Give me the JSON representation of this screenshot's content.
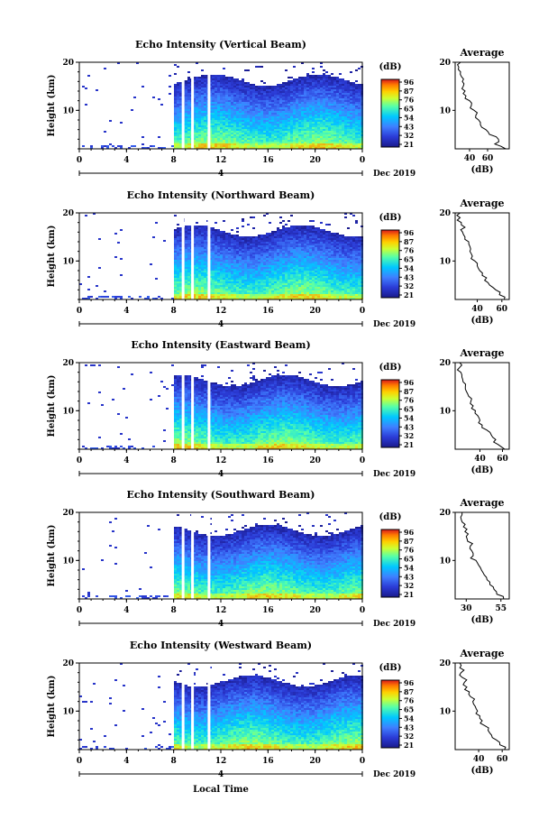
{
  "figure": {
    "xlabel": "Local Time",
    "date_label": "Dec 2019",
    "day_marker": "4",
    "colorbar_unit": "(dB)",
    "colorbar_ticks": [
      "96",
      "87",
      "76",
      "65",
      "54",
      "43",
      "32",
      "21"
    ],
    "avg_title": "Average",
    "avg_xlabel": "(dB)"
  },
  "chart_data": [
    {
      "type": "heatmap",
      "title": "Echo Intensity (Vertical Beam)",
      "ylabel": "Height (km)",
      "xlabel": "Local Time",
      "x_ticks": [
        "0",
        "4",
        "8",
        "12",
        "16",
        "20",
        "0"
      ],
      "y_ticks": [
        "20",
        "10"
      ],
      "xlim": [
        0,
        24
      ],
      "ylim": [
        2,
        20
      ],
      "data_gaps_hours": [
        [
          0,
          8
        ]
      ],
      "white_gap_columns_hours": [
        8.8,
        9.6,
        11.0
      ],
      "colorbar": {
        "unit": "(dB)",
        "ticks": [
          96,
          87,
          76,
          65,
          54,
          43,
          32,
          21
        ],
        "colors": [
          "#d7191c",
          "#fd8d3c",
          "#ffff33",
          "#66ff99",
          "#00ccff",
          "#3366ff",
          "#1a1a8c"
        ]
      },
      "average_profile": {
        "title": "Average",
        "xlabel": "(dB)",
        "x_ticks": [
          "40",
          "60"
        ],
        "y_ticks": [
          "20",
          "10"
        ],
        "heights_km": [
          2,
          3,
          4,
          5,
          6,
          7,
          8,
          9,
          10,
          11,
          12,
          13,
          14,
          15,
          16,
          17,
          18,
          19,
          20
        ],
        "values_db": [
          80,
          68,
          72,
          62,
          58,
          52,
          50,
          47,
          45,
          42,
          40,
          36,
          35,
          33,
          32,
          31,
          30,
          28,
          30
        ]
      }
    },
    {
      "type": "heatmap",
      "title": "Echo Intensity (Northward Beam)",
      "ylabel": "Height (km)",
      "xlabel": "Local Time",
      "x_ticks": [
        "0",
        "4",
        "8",
        "12",
        "16",
        "20",
        "0"
      ],
      "y_ticks": [
        "20",
        "10"
      ],
      "xlim": [
        0,
        24
      ],
      "ylim": [
        2,
        20
      ],
      "data_gaps_hours": [
        [
          0,
          8
        ]
      ],
      "white_gap_columns_hours": [
        8.8,
        9.6,
        11.0
      ],
      "colorbar": {
        "unit": "(dB)",
        "ticks": [
          96,
          87,
          76,
          65,
          54,
          43,
          32,
          21
        ],
        "colors": [
          "#d7191c",
          "#fd8d3c",
          "#ffff33",
          "#66ff99",
          "#00ccff",
          "#3366ff",
          "#1a1a8c"
        ]
      },
      "average_profile": {
        "title": "Average",
        "xlabel": "(dB)",
        "x_ticks": [
          "40",
          "60"
        ],
        "y_ticks": [
          "20",
          "10"
        ],
        "heights_km": [
          2,
          3,
          4,
          5,
          6,
          7,
          8,
          9,
          10,
          11,
          12,
          13,
          14,
          15,
          16,
          17,
          18,
          19,
          20
        ],
        "values_db": [
          62,
          58,
          55,
          50,
          46,
          44,
          42,
          40,
          38,
          36,
          34,
          34,
          33,
          30,
          28,
          30,
          27,
          26,
          26
        ]
      }
    },
    {
      "type": "heatmap",
      "title": "Echo Intensity (Eastward Beam)",
      "ylabel": "Height (km)",
      "xlabel": "Local Time",
      "x_ticks": [
        "0",
        "4",
        "8",
        "12",
        "16",
        "20",
        "0"
      ],
      "y_ticks": [
        "20",
        "10"
      ],
      "xlim": [
        0,
        24
      ],
      "ylim": [
        2,
        20
      ],
      "data_gaps_hours": [
        [
          0,
          8
        ]
      ],
      "white_gap_columns_hours": [
        8.8,
        9.6,
        11.0
      ],
      "colorbar": {
        "unit": "(dB)",
        "ticks": [
          96,
          87,
          76,
          65,
          54,
          43,
          32,
          21
        ],
        "colors": [
          "#d7191c",
          "#fd8d3c",
          "#ffff33",
          "#66ff99",
          "#00ccff",
          "#3366ff",
          "#1a1a8c"
        ]
      },
      "average_profile": {
        "title": "Average",
        "xlabel": "(dB)",
        "x_ticks": [
          "40",
          "60"
        ],
        "y_ticks": [
          "20",
          "10"
        ],
        "heights_km": [
          2,
          3,
          4,
          5,
          6,
          7,
          8,
          9,
          10,
          11,
          12,
          13,
          14,
          15,
          16,
          17,
          18,
          19,
          20
        ],
        "values_db": [
          62,
          56,
          54,
          50,
          46,
          42,
          40,
          38,
          36,
          34,
          32,
          30,
          28,
          27,
          25,
          24,
          23,
          22,
          22
        ]
      }
    },
    {
      "type": "heatmap",
      "title": "Echo Intensity (Southward Beam)",
      "ylabel": "Height (km)",
      "xlabel": "Local Time",
      "x_ticks": [
        "0",
        "4",
        "8",
        "12",
        "16",
        "20",
        "0"
      ],
      "y_ticks": [
        "20",
        "10"
      ],
      "xlim": [
        0,
        24
      ],
      "ylim": [
        2,
        20
      ],
      "data_gaps_hours": [
        [
          0,
          8
        ]
      ],
      "white_gap_columns_hours": [
        8.8,
        9.6,
        11.0
      ],
      "colorbar": {
        "unit": "(dB)",
        "ticks": [
          96,
          87,
          76,
          65,
          54,
          43,
          32,
          21
        ],
        "colors": [
          "#d7191c",
          "#fd8d3c",
          "#ffff33",
          "#66ff99",
          "#00ccff",
          "#3366ff",
          "#1a1a8c"
        ]
      },
      "average_profile": {
        "title": "Average",
        "xlabel": "(dB)",
        "x_ticks": [
          "30",
          "55"
        ],
        "y_ticks": [
          "20",
          "10"
        ],
        "heights_km": [
          2,
          3,
          4,
          5,
          6,
          7,
          8,
          9,
          10,
          11,
          12,
          13,
          14,
          15,
          16,
          17,
          18,
          19,
          20
        ],
        "values_db": [
          57,
          52,
          50,
          47,
          45,
          43,
          41,
          39,
          37,
          35,
          34,
          33,
          31,
          30,
          29,
          28,
          27,
          26,
          27
        ]
      }
    },
    {
      "type": "heatmap",
      "title": "Echo Intensity (Westward Beam)",
      "ylabel": "Height (km)",
      "xlabel": "Local Time",
      "x_ticks": [
        "0",
        "4",
        "8",
        "12",
        "16",
        "20",
        "0"
      ],
      "y_ticks": [
        "20",
        "10"
      ],
      "xlim": [
        0,
        24
      ],
      "ylim": [
        2,
        20
      ],
      "data_gaps_hours": [
        [
          0,
          8
        ]
      ],
      "white_gap_columns_hours": [
        8.8,
        9.6,
        11.0
      ],
      "colorbar": {
        "unit": "(dB)",
        "ticks": [
          96,
          87,
          76,
          65,
          54,
          43,
          32,
          21
        ],
        "colors": [
          "#d7191c",
          "#fd8d3c",
          "#ffff33",
          "#66ff99",
          "#00ccff",
          "#3366ff",
          "#1a1a8c"
        ]
      },
      "average_profile": {
        "title": "Average",
        "xlabel": "(dB)",
        "x_ticks": [
          "40",
          "60"
        ],
        "y_ticks": [
          "20",
          "10"
        ],
        "heights_km": [
          2,
          3,
          4,
          5,
          6,
          7,
          8,
          9,
          10,
          11,
          12,
          13,
          14,
          15,
          16,
          17,
          18,
          19,
          20
        ],
        "values_db": [
          62,
          58,
          55,
          51,
          48,
          45,
          43,
          41,
          39,
          37,
          35,
          33,
          32,
          30,
          28,
          26,
          25,
          24,
          24
        ]
      }
    }
  ]
}
